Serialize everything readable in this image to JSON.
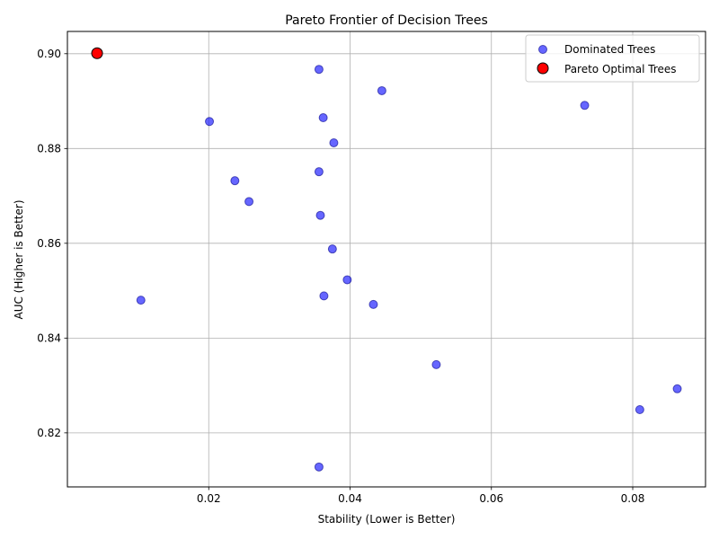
{
  "chart_data": {
    "type": "scatter",
    "title": "Pareto Frontier of Decision Trees",
    "xlabel": "Stability (Lower is Better)",
    "ylabel": "AUC (Higher is Better)",
    "xlim": [
      0.0,
      0.0903
    ],
    "ylim": [
      0.8086,
      0.9047
    ],
    "xticks": [
      0.02,
      0.04,
      0.06,
      0.08
    ],
    "xtick_labels": [
      "0.02",
      "0.04",
      "0.06",
      "0.08"
    ],
    "yticks": [
      0.82,
      0.84,
      0.86,
      0.88,
      0.9
    ],
    "ytick_labels": [
      "0.82",
      "0.84",
      "0.86",
      "0.88",
      "0.90"
    ],
    "grid": true,
    "legend_position": "top-right",
    "series": [
      {
        "name": "Dominated Trees",
        "color": "#0000ff",
        "edgecolor": "#00008b",
        "points": [
          {
            "x": 0.0356,
            "y": 0.8967
          },
          {
            "x": 0.0445,
            "y": 0.8922
          },
          {
            "x": 0.0732,
            "y": 0.8891
          },
          {
            "x": 0.0201,
            "y": 0.8857
          },
          {
            "x": 0.0362,
            "y": 0.8865
          },
          {
            "x": 0.0377,
            "y": 0.8812
          },
          {
            "x": 0.0356,
            "y": 0.8751
          },
          {
            "x": 0.0237,
            "y": 0.8732
          },
          {
            "x": 0.0257,
            "y": 0.8688
          },
          {
            "x": 0.0358,
            "y": 0.8659
          },
          {
            "x": 0.0375,
            "y": 0.8588
          },
          {
            "x": 0.0396,
            "y": 0.8523
          },
          {
            "x": 0.0363,
            "y": 0.8489
          },
          {
            "x": 0.0104,
            "y": 0.848
          },
          {
            "x": 0.0433,
            "y": 0.8471
          },
          {
            "x": 0.0522,
            "y": 0.8344
          },
          {
            "x": 0.0863,
            "y": 0.8293
          },
          {
            "x": 0.081,
            "y": 0.8249
          },
          {
            "x": 0.0356,
            "y": 0.8128
          }
        ]
      },
      {
        "name": "Pareto Optimal Trees",
        "color": "#ff0000",
        "edgecolor": "#000000",
        "points": [
          {
            "x": 0.0042,
            "y": 0.9001
          }
        ]
      }
    ]
  }
}
